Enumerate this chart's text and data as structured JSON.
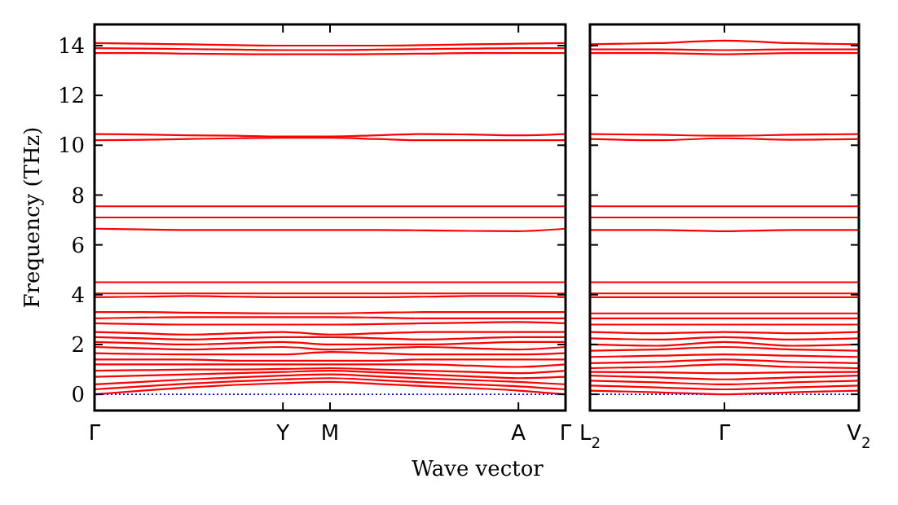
{
  "chart_data": [
    {
      "type": "line",
      "ylabel": "Frequency (THz)",
      "xlabel": "Wave vector",
      "tick_labels": true,
      "categories": [
        "Γ",
        null,
        null,
        null,
        "Y",
        "M",
        null,
        null,
        null,
        "A",
        "Γ"
      ],
      "ylim": [
        -0.65,
        14.85
      ],
      "yticks": [
        0,
        2,
        4,
        6,
        8,
        10,
        12,
        14
      ],
      "ref_lines": [
        {
          "axis": "y",
          "value": 0,
          "color": "#0000ff",
          "line_style": "dotted"
        }
      ],
      "series": [
        {
          "color": "#ff0000",
          "values": [
            14.1,
            14.08,
            14.05,
            14.02,
            14.0,
            14.0,
            14.0,
            14.02,
            14.05,
            14.08,
            14.1
          ]
        },
        {
          "color": "#ff0000",
          "values": [
            13.9,
            13.88,
            13.86,
            13.84,
            13.82,
            13.82,
            13.84,
            13.86,
            13.88,
            13.9,
            13.9
          ]
        },
        {
          "color": "#ff0000",
          "values": [
            13.7,
            13.7,
            13.68,
            13.66,
            13.65,
            13.65,
            13.66,
            13.68,
            13.7,
            13.7,
            13.7
          ]
        },
        {
          "color": "#ff0000",
          "values": [
            10.45,
            10.43,
            10.4,
            10.38,
            10.35,
            10.35,
            10.4,
            10.45,
            10.43,
            10.4,
            10.45
          ]
        },
        {
          "color": "#ff0000",
          "values": [
            10.2,
            10.22,
            10.25,
            10.28,
            10.3,
            10.3,
            10.25,
            10.2,
            10.2,
            10.2,
            10.2
          ]
        },
        {
          "color": "#ff0000",
          "values": [
            7.55,
            7.55,
            7.55,
            7.55,
            7.55,
            7.55,
            7.55,
            7.55,
            7.55,
            7.55,
            7.55
          ]
        },
        {
          "color": "#ff0000",
          "values": [
            7.1,
            7.1,
            7.1,
            7.1,
            7.1,
            7.1,
            7.1,
            7.1,
            7.1,
            7.1,
            7.1
          ]
        },
        {
          "color": "#ff0000",
          "values": [
            6.65,
            6.62,
            6.6,
            6.6,
            6.6,
            6.6,
            6.6,
            6.58,
            6.56,
            6.55,
            6.65
          ]
        },
        {
          "color": "#ff0000",
          "values": [
            4.5,
            4.5,
            4.5,
            4.5,
            4.5,
            4.5,
            4.5,
            4.5,
            4.5,
            4.5,
            4.5
          ]
        },
        {
          "color": "#ff0000",
          "values": [
            4.05,
            4.05,
            4.05,
            4.05,
            4.05,
            4.05,
            4.05,
            4.05,
            4.05,
            4.05,
            4.05
          ]
        },
        {
          "color": "#ff0000",
          "values": [
            3.9,
            3.92,
            3.95,
            3.92,
            3.9,
            3.9,
            3.9,
            3.92,
            3.95,
            3.95,
            3.9
          ]
        },
        {
          "color": "#ff0000",
          "values": [
            3.3,
            3.3,
            3.28,
            3.26,
            3.25,
            3.25,
            3.28,
            3.3,
            3.3,
            3.3,
            3.3
          ]
        },
        {
          "color": "#ff0000",
          "values": [
            3.05,
            3.08,
            3.1,
            3.1,
            3.1,
            3.1,
            3.08,
            3.05,
            3.05,
            3.05,
            3.05
          ]
        },
        {
          "color": "#ff0000",
          "values": [
            2.85,
            2.82,
            2.8,
            2.8,
            2.8,
            2.8,
            2.82,
            2.85,
            2.88,
            2.9,
            2.85
          ]
        },
        {
          "color": "#ff0000",
          "values": [
            2.5,
            2.45,
            2.4,
            2.45,
            2.5,
            2.4,
            2.45,
            2.5,
            2.5,
            2.5,
            2.5
          ]
        },
        {
          "color": "#ff0000",
          "values": [
            2.3,
            2.25,
            2.2,
            2.25,
            2.3,
            2.3,
            2.25,
            2.2,
            2.25,
            2.3,
            2.3
          ]
        },
        {
          "color": "#ff0000",
          "values": [
            2.1,
            2.05,
            2.0,
            2.05,
            2.1,
            2.0,
            2.0,
            2.0,
            2.05,
            2.1,
            2.1
          ]
        },
        {
          "color": "#ff0000",
          "values": [
            1.9,
            1.85,
            1.8,
            1.85,
            1.9,
            1.8,
            1.85,
            1.9,
            1.85,
            1.8,
            1.9
          ]
        },
        {
          "color": "#ff0000",
          "values": [
            1.65,
            1.62,
            1.6,
            1.6,
            1.6,
            1.7,
            1.65,
            1.6,
            1.6,
            1.6,
            1.65
          ]
        },
        {
          "color": "#ff0000",
          "values": [
            1.4,
            1.4,
            1.4,
            1.35,
            1.35,
            1.35,
            1.35,
            1.4,
            1.4,
            1.4,
            1.4
          ]
        },
        {
          "color": "#ff0000",
          "values": [
            1.2,
            1.2,
            1.2,
            1.2,
            1.2,
            1.2,
            1.2,
            1.2,
            1.15,
            1.1,
            1.2
          ]
        },
        {
          "color": "#ff0000",
          "values": [
            0.95,
            0.97,
            1.0,
            1.0,
            1.02,
            1.05,
            1.0,
            0.95,
            0.9,
            0.85,
            0.95
          ]
        },
        {
          "color": "#ff0000",
          "values": [
            0.7,
            0.75,
            0.8,
            0.85,
            0.9,
            0.95,
            0.88,
            0.8,
            0.72,
            0.65,
            0.7
          ]
        },
        {
          "color": "#ff0000",
          "values": [
            0,
            0.15,
            0.28,
            0.38,
            0.45,
            0.5,
            0.42,
            0.33,
            0.25,
            0.15,
            0
          ]
        },
        {
          "color": "#ff0000",
          "values": [
            0.2,
            0.32,
            0.43,
            0.52,
            0.6,
            0.65,
            0.57,
            0.48,
            0.4,
            0.32,
            0.2
          ]
        },
        {
          "color": "#ff0000",
          "values": [
            0.4,
            0.5,
            0.6,
            0.68,
            0.75,
            0.8,
            0.72,
            0.64,
            0.57,
            0.5,
            0.4
          ]
        }
      ]
    },
    {
      "type": "line",
      "tick_labels": "x",
      "categories": [
        "L$_{2}$",
        null,
        "Γ",
        null,
        "V$_{2}$"
      ],
      "ylim": [
        -0.65,
        14.85
      ],
      "yticks": [
        0,
        2,
        4,
        6,
        8,
        10,
        12,
        14
      ],
      "ref_lines": [
        {
          "axis": "y",
          "value": 0,
          "color": "#0000ff",
          "line_style": "dotted"
        }
      ],
      "series": [
        {
          "color": "#ff0000",
          "values": [
            14.05,
            14.1,
            14.2,
            14.1,
            14.05
          ]
        },
        {
          "color": "#ff0000",
          "values": [
            13.85,
            13.85,
            13.82,
            13.85,
            13.85
          ]
        },
        {
          "color": "#ff0000",
          "values": [
            13.7,
            13.7,
            13.65,
            13.7,
            13.7
          ]
        },
        {
          "color": "#ff0000",
          "values": [
            10.45,
            10.42,
            10.38,
            10.42,
            10.45
          ]
        },
        {
          "color": "#ff0000",
          "values": [
            10.25,
            10.2,
            10.28,
            10.22,
            10.25
          ]
        },
        {
          "color": "#ff0000",
          "values": [
            7.55,
            7.55,
            7.55,
            7.55,
            7.55
          ]
        },
        {
          "color": "#ff0000",
          "values": [
            7.1,
            7.1,
            7.1,
            7.1,
            7.1
          ]
        },
        {
          "color": "#ff0000",
          "values": [
            6.6,
            6.6,
            6.55,
            6.6,
            6.6
          ]
        },
        {
          "color": "#ff0000",
          "values": [
            4.5,
            4.5,
            4.5,
            4.5,
            4.5
          ]
        },
        {
          "color": "#ff0000",
          "values": [
            4.05,
            4.05,
            4.05,
            4.05,
            4.05
          ]
        },
        {
          "color": "#ff0000",
          "values": [
            3.9,
            3.9,
            3.9,
            3.9,
            3.9
          ]
        },
        {
          "color": "#ff0000",
          "values": [
            3.25,
            3.25,
            3.25,
            3.25,
            3.25
          ]
        },
        {
          "color": "#ff0000",
          "values": [
            3.05,
            3.05,
            3.05,
            3.05,
            3.05
          ]
        },
        {
          "color": "#ff0000",
          "values": [
            2.8,
            2.8,
            2.8,
            2.8,
            2.8
          ]
        },
        {
          "color": "#ff0000",
          "values": [
            2.5,
            2.45,
            2.5,
            2.45,
            2.5
          ]
        },
        {
          "color": "#ff0000",
          "values": [
            2.25,
            2.2,
            2.3,
            2.2,
            2.25
          ]
        },
        {
          "color": "#ff0000",
          "values": [
            2.0,
            1.95,
            2.1,
            1.95,
            2.0
          ]
        },
        {
          "color": "#ff0000",
          "values": [
            1.75,
            1.8,
            1.9,
            1.8,
            1.75
          ]
        },
        {
          "color": "#ff0000",
          "values": [
            1.5,
            1.55,
            1.6,
            1.55,
            1.5
          ]
        },
        {
          "color": "#ff0000",
          "values": [
            1.25,
            1.3,
            1.4,
            1.3,
            1.25
          ]
        },
        {
          "color": "#ff0000",
          "values": [
            1.05,
            1.1,
            1.2,
            1.1,
            1.05
          ]
        },
        {
          "color": "#ff0000",
          "values": [
            0.9,
            0.88,
            0.85,
            0.88,
            0.9
          ]
        },
        {
          "color": "#ff0000",
          "values": [
            0.75,
            0.68,
            0.6,
            0.68,
            0.75
          ]
        },
        {
          "color": "#ff0000",
          "values": [
            0.15,
            0.08,
            0,
            0.08,
            0.15
          ]
        },
        {
          "color": "#ff0000",
          "values": [
            0.35,
            0.28,
            0.2,
            0.28,
            0.35
          ]
        },
        {
          "color": "#ff0000",
          "values": [
            0.55,
            0.48,
            0.4,
            0.48,
            0.55
          ]
        }
      ]
    }
  ]
}
